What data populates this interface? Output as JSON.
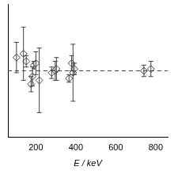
{
  "chart_data": {
    "type": "scatter",
    "x_label": "E / keV",
    "x": [
      103,
      138,
      152,
      176,
      183,
      190,
      200,
      217,
      279,
      297,
      303,
      366,
      379,
      386,
      393,
      741,
      776
    ],
    "values": [
      1.07,
      1.09,
      1.05,
      0.93,
      0.97,
      1.03,
      1.04,
      0.95,
      0.99,
      1.0,
      1.01,
      0.96,
      1.04,
      0.99,
      1.01,
      1.0,
      1.01
    ],
    "y_err": [
      0.08,
      0.14,
      0.03,
      0.04,
      0.05,
      0.02,
      0.06,
      0.17,
      0.03,
      0.05,
      0.06,
      0.02,
      0.04,
      0.15,
      0.03,
      0.03,
      0.04
    ],
    "reference_y": 1,
    "xlim": [
      60,
      860
    ],
    "xticks": [
      200,
      400,
      600,
      800
    ],
    "ylim": [
      0.65,
      1.35
    ],
    "tick_labels": "x",
    "grid": false,
    "color": "#404040",
    "marker": "diamond",
    "line_style": "dashed"
  }
}
